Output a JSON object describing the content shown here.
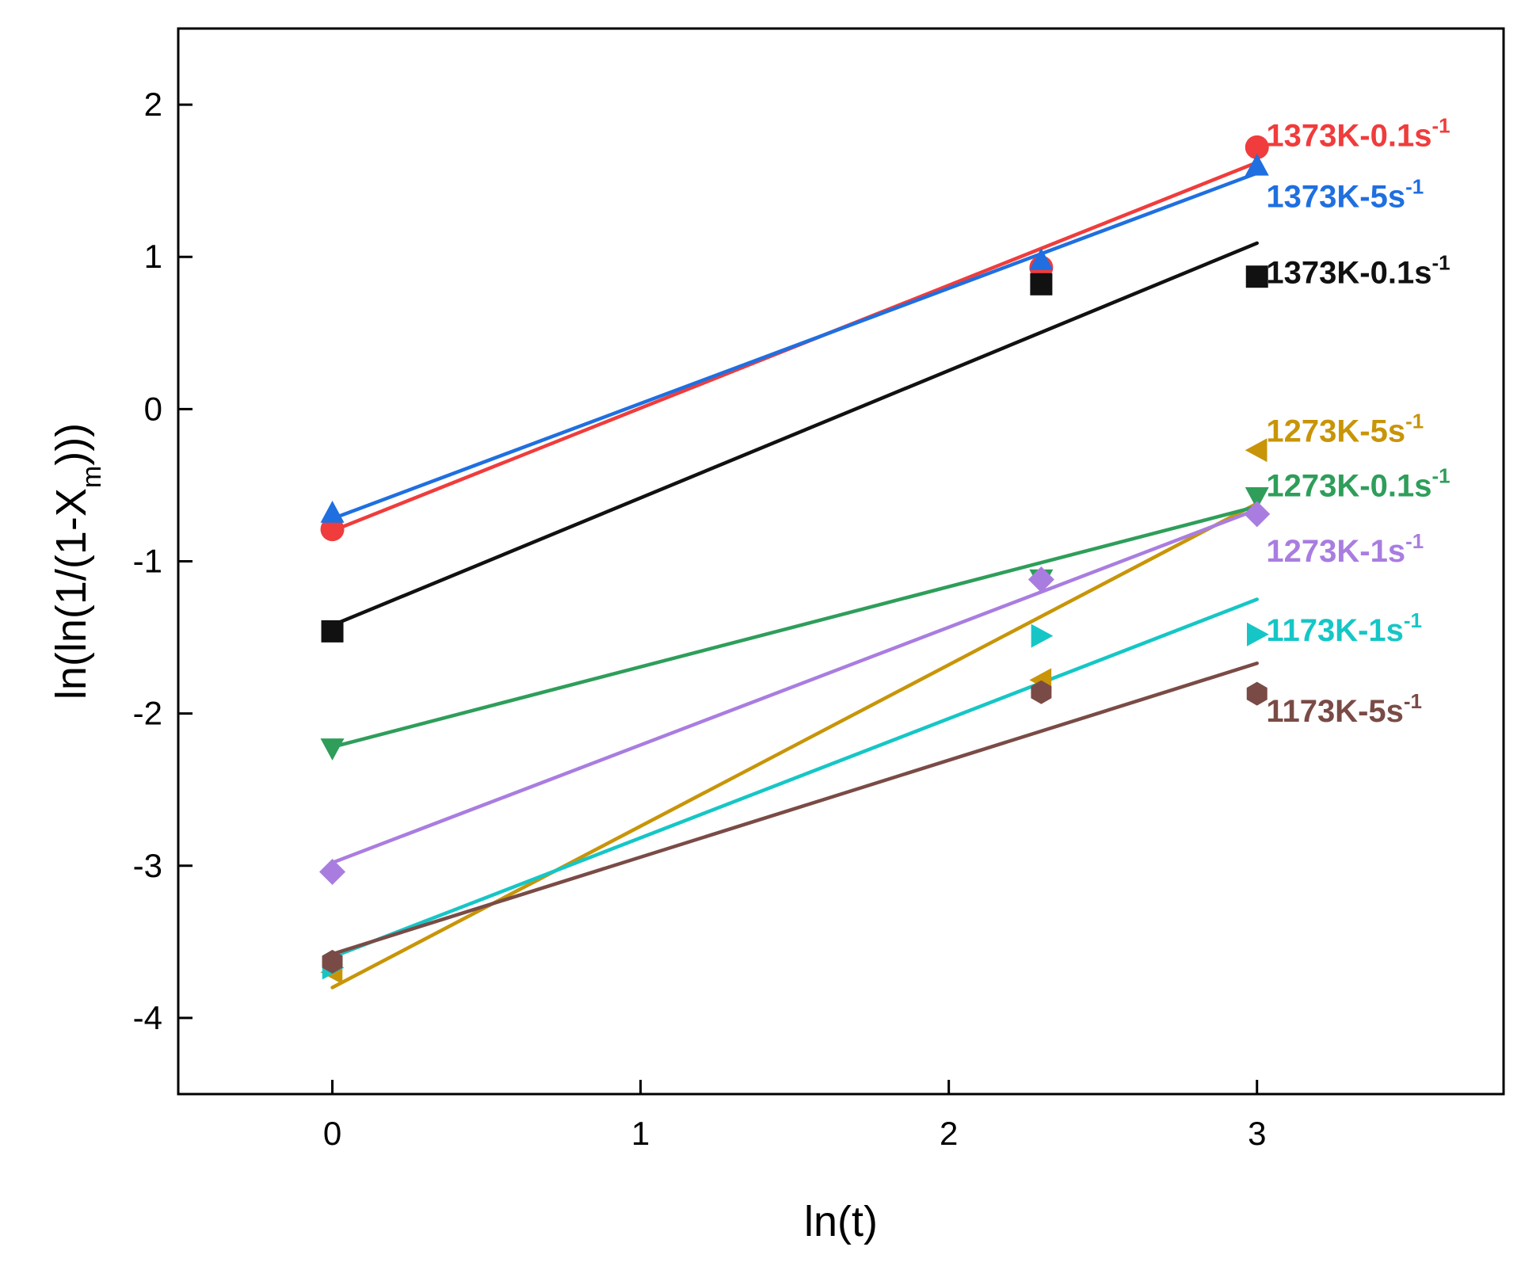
{
  "chart_data": {
    "type": "scatter",
    "title": "",
    "xlabel": "ln(t)",
    "ylabel": "ln(ln(1/(1-X",
    "ylabel_sub": "m",
    "ylabel_tail": ")))",
    "xlim": [
      -0.5,
      3.8
    ],
    "ylim": [
      -4.5,
      2.5
    ],
    "xticks": [
      0,
      1,
      2,
      3
    ],
    "yticks": [
      -4,
      -3,
      -2,
      -1,
      0,
      1,
      2
    ],
    "xtick_labels": [
      "0",
      "1",
      "2",
      "3"
    ],
    "ytick_labels": [
      "-4",
      "-3",
      "-2",
      "-1",
      "0",
      "1",
      "2"
    ],
    "grid": false,
    "series": [
      {
        "label_main": "1373K-0.1s",
        "label_sup": "-1",
        "color": "#f03c3c",
        "marker": "circle",
        "x": [
          0,
          2.3,
          3
        ],
        "y": [
          -0.79,
          0.93,
          1.72
        ],
        "fit": [
          [
            0,
            -0.8
          ],
          [
            3,
            1.62
          ]
        ],
        "label_at": [
          3.03,
          1.8
        ]
      },
      {
        "label_main": "1373K-5s",
        "label_sup": "-1",
        "color": "#1f6fe0",
        "marker": "triangle-up",
        "x": [
          0,
          2.3,
          3
        ],
        "y": [
          -0.68,
          0.98,
          1.6
        ],
        "fit": [
          [
            0,
            -0.72
          ],
          [
            3,
            1.55
          ]
        ],
        "label_at": [
          3.03,
          1.4
        ]
      },
      {
        "label_main": "1373K-0.1s",
        "label_sup": "-1",
        "color": "#111111",
        "marker": "square",
        "x": [
          0,
          2.3,
          3
        ],
        "y": [
          -1.46,
          0.82,
          0.87
        ],
        "fit": [
          [
            0,
            -1.42
          ],
          [
            3,
            1.09
          ]
        ],
        "label_at": [
          3.03,
          0.9
        ]
      },
      {
        "label_main": "1273K-5s",
        "label_sup": "-1",
        "color": "#c89508",
        "marker": "triangle-left",
        "x": [
          0,
          2.3,
          3
        ],
        "y": [
          -3.7,
          -1.78,
          -0.27
        ],
        "fit": [
          [
            0,
            -3.8
          ],
          [
            3,
            -0.62
          ]
        ],
        "label_at": [
          3.03,
          -0.14
        ]
      },
      {
        "label_main": "1273K-0.1s",
        "label_sup": "-1",
        "color": "#2e9e5a",
        "marker": "triangle-down",
        "x": [
          0,
          2.3,
          3
        ],
        "y": [
          -2.23,
          -1.12,
          -0.58
        ],
        "fit": [
          [
            0,
            -2.22
          ],
          [
            3,
            -0.64
          ]
        ],
        "label_at": [
          3.03,
          -0.5
        ]
      },
      {
        "label_main": "1273K-1s",
        "label_sup": "-1",
        "color": "#a97de0",
        "marker": "diamond",
        "x": [
          0,
          2.3,
          3
        ],
        "y": [
          -3.04,
          -1.12,
          -0.69
        ],
        "fit": [
          [
            0,
            -2.98
          ],
          [
            3,
            -0.66
          ]
        ],
        "label_at": [
          3.03,
          -0.93
        ]
      },
      {
        "label_main": "1173K-1s",
        "label_sup": "-1",
        "color": "#16c6c6",
        "marker": "triangle-right",
        "x": [
          0,
          2.3,
          3
        ],
        "y": [
          -3.67,
          -1.49,
          -1.48
        ],
        "fit": [
          [
            0,
            -3.6
          ],
          [
            3,
            -1.25
          ]
        ],
        "label_at": [
          3.03,
          -1.45
        ]
      },
      {
        "label_main": "1173K-5s",
        "label_sup": "-1",
        "color": "#7a4b46",
        "marker": "hexagon",
        "x": [
          0,
          2.3,
          3
        ],
        "y": [
          -3.63,
          -1.86,
          -1.87
        ],
        "fit": [
          [
            0,
            -3.58
          ],
          [
            3,
            -1.67
          ]
        ],
        "label_at": [
          3.03,
          -1.98
        ]
      }
    ]
  }
}
